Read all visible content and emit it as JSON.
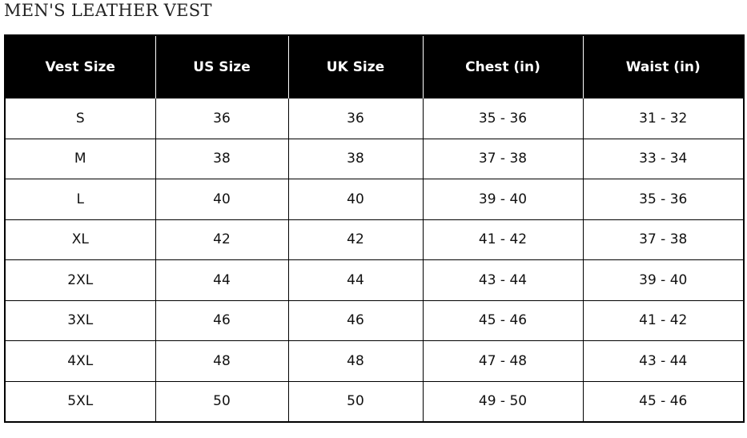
{
  "title": "MEN'S LEATHER VEST",
  "table": {
    "headers": [
      "Vest Size",
      "US Size",
      "UK Size",
      "Chest (in)",
      "Waist (in)"
    ],
    "rows": [
      [
        "S",
        "36",
        "36",
        "35 - 36",
        "31 - 32"
      ],
      [
        "M",
        "38",
        "38",
        "37 - 38",
        "33 - 34"
      ],
      [
        "L",
        "40",
        "40",
        "39 - 40",
        "35 - 36"
      ],
      [
        "XL",
        "42",
        "42",
        "41 - 42",
        "37 - 38"
      ],
      [
        "2XL",
        "44",
        "44",
        "43 - 44",
        "39 - 40"
      ],
      [
        "3XL",
        "46",
        "46",
        "45 - 46",
        "41 - 42"
      ],
      [
        "4XL",
        "48",
        "48",
        "47 - 48",
        "43 - 44"
      ],
      [
        "5XL",
        "50",
        "50",
        "49 - 50",
        "45 - 46"
      ]
    ]
  }
}
